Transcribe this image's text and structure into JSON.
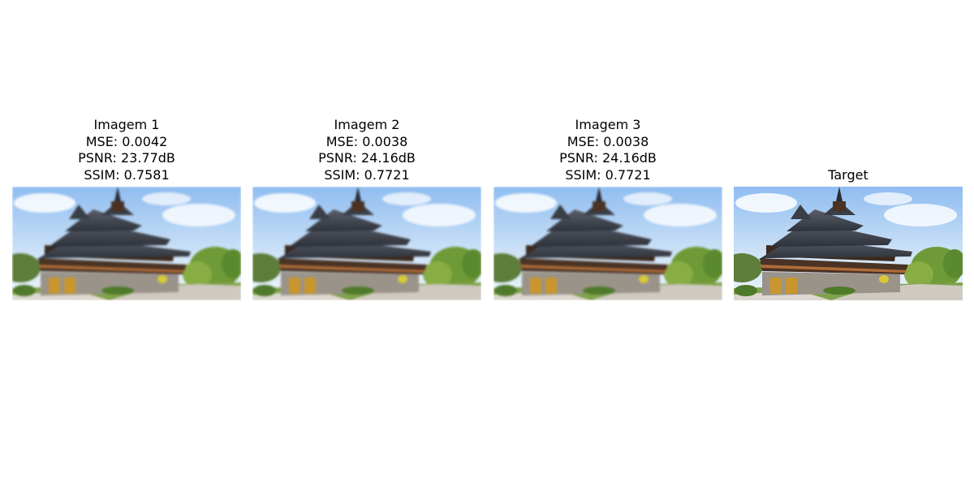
{
  "panels": [
    {
      "title": "Imagem 1",
      "mse": "MSE: 0.0042",
      "psnr": "PSNR: 23.77dB",
      "ssim": "SSIM: 0.7581",
      "image": "wooden-monastery-photo-blurred"
    },
    {
      "title": "Imagem 2",
      "mse": "MSE: 0.0038",
      "psnr": "PSNR: 24.16dB",
      "ssim": "SSIM: 0.7721",
      "image": "wooden-monastery-photo-blurred"
    },
    {
      "title": "Imagem 3",
      "mse": "MSE: 0.0038",
      "psnr": "PSNR: 24.16dB",
      "ssim": "SSIM: 0.7721",
      "image": "wooden-monastery-photo-blurred"
    },
    {
      "title": "Target",
      "image": "wooden-monastery-photo-sharp"
    }
  ]
}
